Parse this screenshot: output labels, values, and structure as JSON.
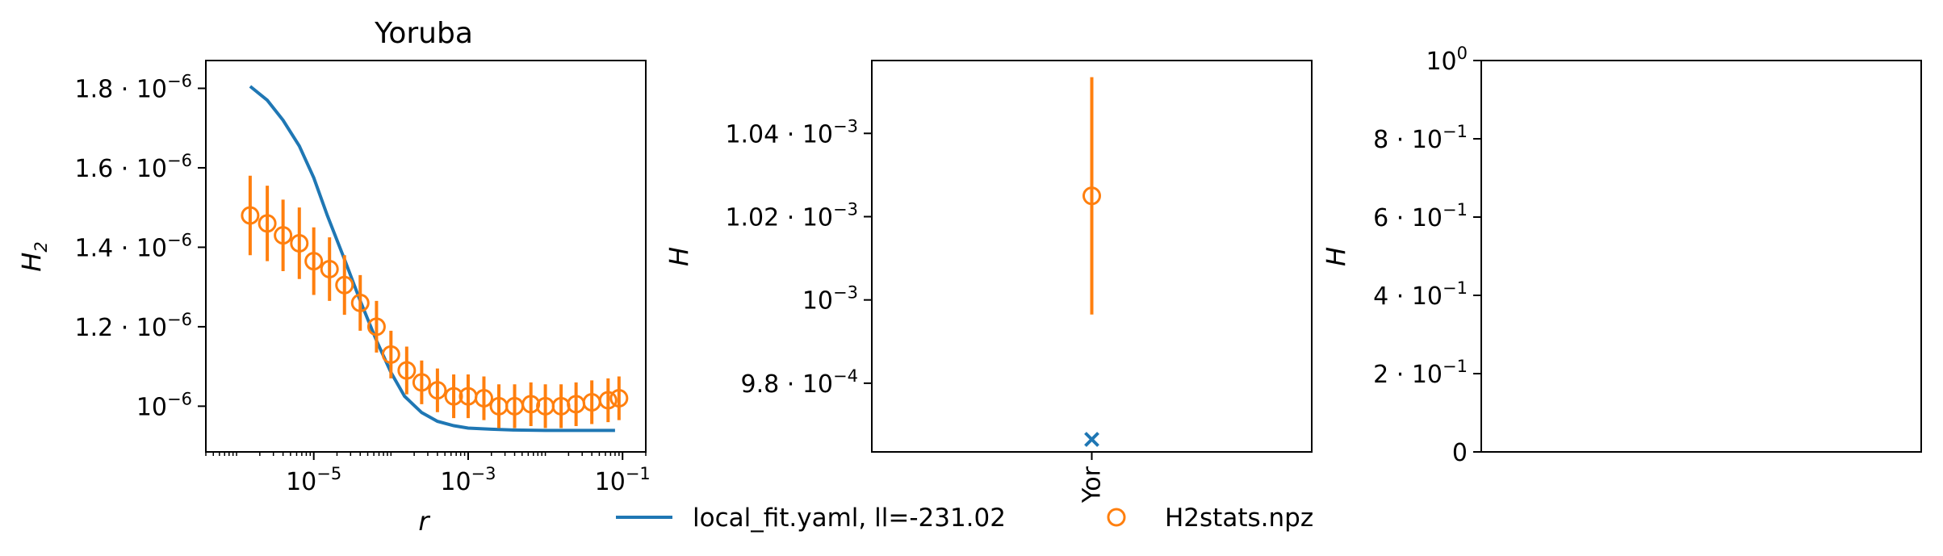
{
  "colors": {
    "model": "#1f77b4",
    "data": "#ff7f0e"
  },
  "chart_data": [
    {
      "type": "line",
      "title": "Yoruba",
      "xlabel": "r",
      "ylabel": "H_2",
      "x_scale": "log",
      "xlim": [
        4e-07,
        0.2
      ],
      "ylim": [
        8.85e-07,
        1.87e-06
      ],
      "x_ticks": [
        {
          "value": 1e-05,
          "base": "10",
          "exp": "−5"
        },
        {
          "value": 0.001,
          "base": "10",
          "exp": "−3"
        },
        {
          "value": 0.1,
          "base": "10",
          "exp": "−1"
        }
      ],
      "y_ticks": [
        {
          "value": 1.8e-06,
          "mant": "1.8 · ",
          "base": "10",
          "exp": "−6"
        },
        {
          "value": 1.6e-06,
          "mant": "1.6 · ",
          "base": "10",
          "exp": "−6"
        },
        {
          "value": 1.4e-06,
          "mant": "1.4 · ",
          "base": "10",
          "exp": "−6"
        },
        {
          "value": 1.2e-06,
          "mant": "1.2 · ",
          "base": "10",
          "exp": "−6"
        },
        {
          "value": 1e-06,
          "mant": "",
          "base": "10",
          "exp": "−6"
        }
      ],
      "series": [
        {
          "name": "local_fit.yaml, ll=-231.02",
          "kind": "line",
          "x": [
            1.5e-06,
            2.5e-06,
            4e-06,
            6.5e-06,
            1e-05,
            1.5e-05,
            2.5e-05,
            4e-05,
            6.5e-05,
            0.0001,
            0.00015,
            0.00025,
            0.0004,
            0.00065,
            0.001,
            0.002,
            0.004,
            0.01,
            0.03,
            0.08
          ],
          "y": [
            1.805e-06,
            1.77e-06,
            1.72e-06,
            1.655e-06,
            1.575e-06,
            1.48e-06,
            1.37e-06,
            1.265e-06,
            1.165e-06,
            1.085e-06,
            1.025e-06,
            9.84e-07,
            9.62e-07,
            9.51e-07,
            9.45e-07,
            9.42e-07,
            9.4e-07,
            9.39e-07,
            9.39e-07,
            9.39e-07
          ]
        },
        {
          "name": "H2stats.npz",
          "kind": "scatter_errorbar",
          "x": [
            1.5e-06,
            2.5e-06,
            4e-06,
            6.5e-06,
            1e-05,
            1.6e-05,
            2.5e-05,
            4e-05,
            6.5e-05,
            0.0001,
            0.00016,
            0.00025,
            0.0004,
            0.00065,
            0.001,
            0.0016,
            0.0025,
            0.004,
            0.0065,
            0.01,
            0.016,
            0.025,
            0.04,
            0.065,
            0.09
          ],
          "y": [
            1.48e-06,
            1.46e-06,
            1.43e-06,
            1.41e-06,
            1.365e-06,
            1.345e-06,
            1.305e-06,
            1.26e-06,
            1.2e-06,
            1.13e-06,
            1.09e-06,
            1.06e-06,
            1.04e-06,
            1.025e-06,
            1.025e-06,
            1.02e-06,
            1e-06,
            1e-06,
            1.005e-06,
            1e-06,
            1e-06,
            1.005e-06,
            1.01e-06,
            1.015e-06,
            1.02e-06
          ],
          "err": [
            1e-07,
            9.5e-08,
            9e-08,
            9e-08,
            8.5e-08,
            8e-08,
            7.5e-08,
            7e-08,
            6.5e-08,
            6e-08,
            6e-08,
            5.5e-08,
            5.5e-08,
            5.5e-08,
            5.5e-08,
            5.5e-08,
            5.5e-08,
            5.5e-08,
            5.5e-08,
            5.5e-08,
            5.5e-08,
            5.5e-08,
            5.5e-08,
            5.5e-08,
            5.5e-08
          ]
        }
      ]
    },
    {
      "type": "scatter",
      "title": "",
      "xlabel": "",
      "ylabel": "H",
      "categories": [
        "Yor"
      ],
      "ylim": [
        0.0009635,
        0.0010575
      ],
      "y_ticks": [
        {
          "value": 0.00104,
          "mant": "1.04 · ",
          "base": "10",
          "exp": "−3"
        },
        {
          "value": 0.00102,
          "mant": "1.02 · ",
          "base": "10",
          "exp": "−3"
        },
        {
          "value": 0.001,
          "mant": "",
          "base": "10",
          "exp": "−3"
        },
        {
          "value": 0.00098,
          "mant": "9.8 · ",
          "base": "10",
          "exp": "−4"
        }
      ],
      "series": [
        {
          "name": "local_fit.yaml, ll=-231.02",
          "kind": "x_marker",
          "values": [
            0.0009665
          ]
        },
        {
          "name": "H2stats.npz",
          "kind": "scatter_errorbar",
          "values": [
            0.001025
          ],
          "err": [
            2.85e-05
          ]
        }
      ]
    },
    {
      "type": "scatter",
      "title": "",
      "xlabel": "",
      "ylabel": "H",
      "ylim": [
        0,
        1
      ],
      "y_ticks": [
        {
          "value": 1.0,
          "mant": "",
          "base": "10",
          "exp": "0"
        },
        {
          "value": 0.8,
          "mant": "8 · ",
          "base": "10",
          "exp": "−1"
        },
        {
          "value": 0.6,
          "mant": "6 · ",
          "base": "10",
          "exp": "−1"
        },
        {
          "value": 0.4,
          "mant": "4 · ",
          "base": "10",
          "exp": "−1"
        },
        {
          "value": 0.2,
          "mant": "2 · ",
          "base": "10",
          "exp": "−1"
        },
        {
          "value": 0.0,
          "mant": "0",
          "base": "",
          "exp": ""
        }
      ],
      "series": []
    }
  ],
  "legend": {
    "placement": "bottom-center",
    "entries": [
      {
        "label": "local_fit.yaml, ll=-231.02",
        "marker": "line"
      },
      {
        "label": "H2stats.npz",
        "marker": "circle"
      }
    ]
  }
}
